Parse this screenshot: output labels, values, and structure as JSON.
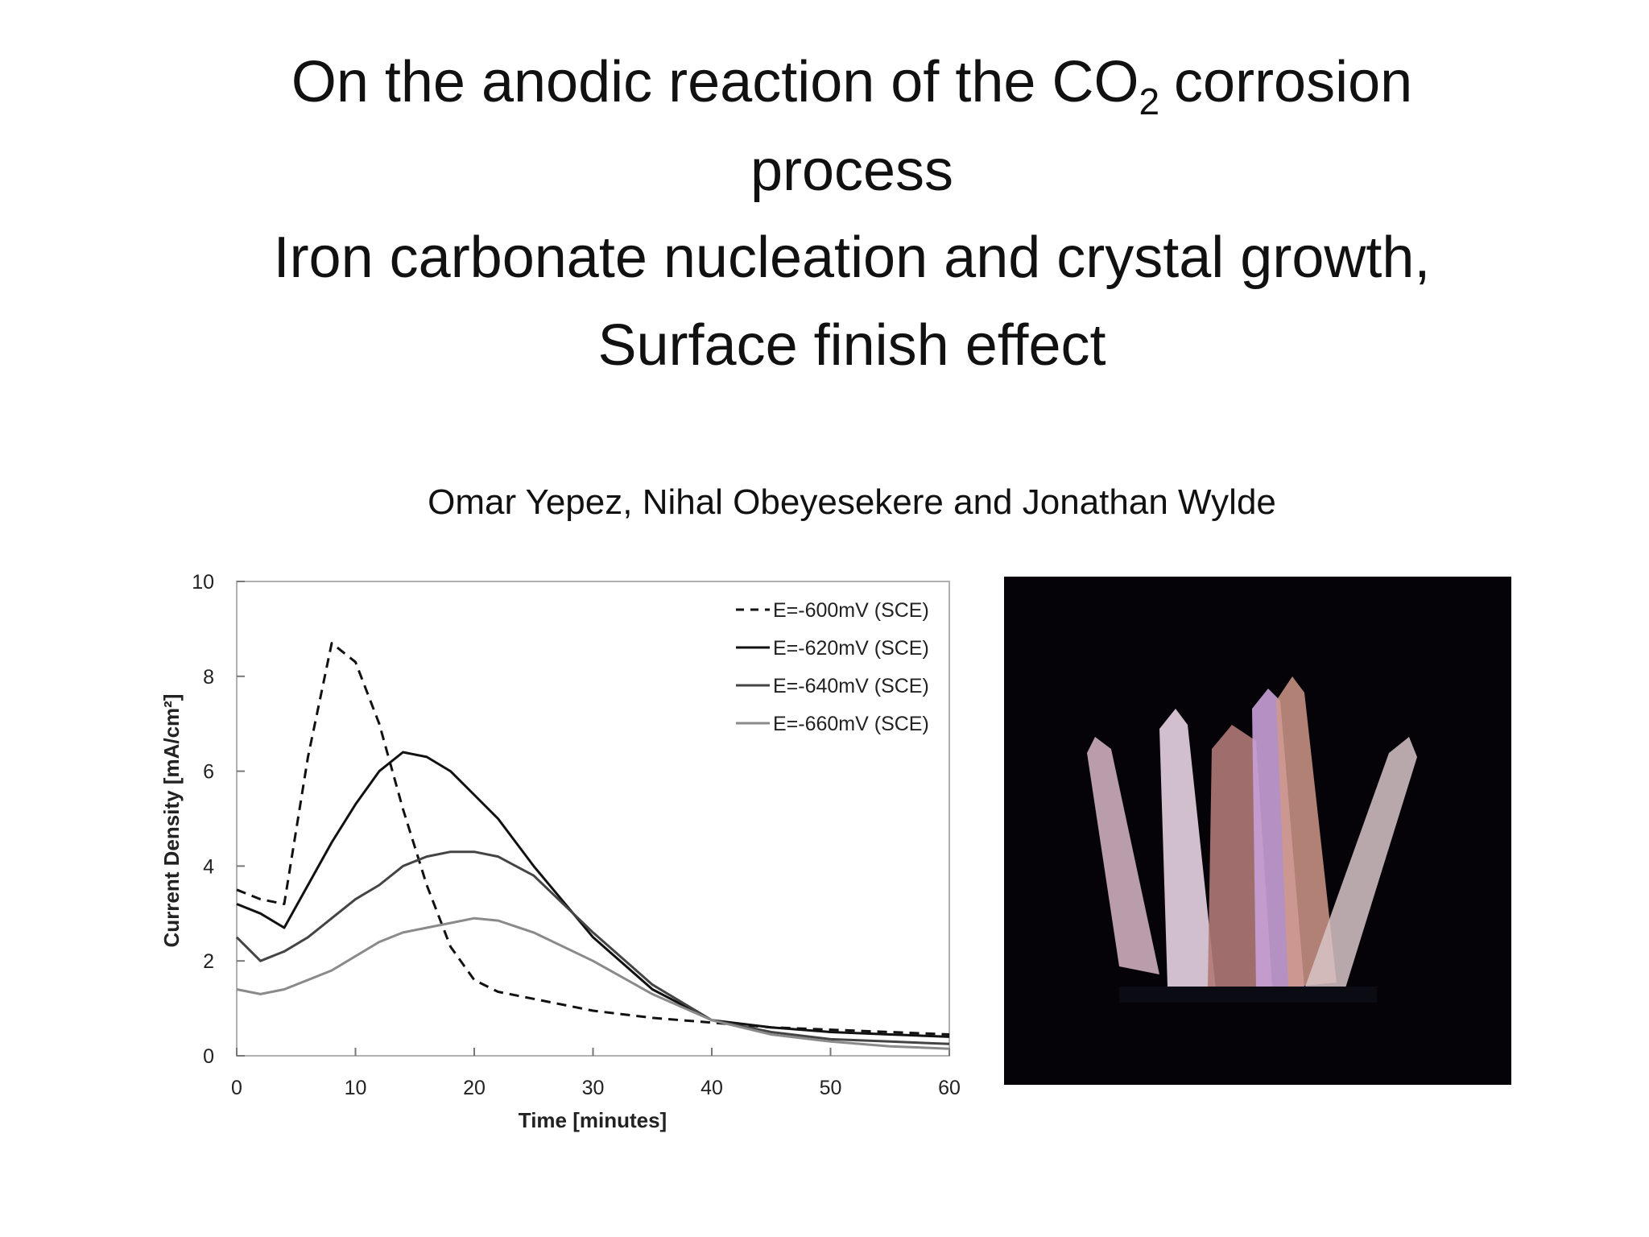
{
  "title": {
    "line1": {
      "text": "On the anodic reaction of the CO",
      "subscript": "2",
      "after": "corrosion"
    },
    "line2": "process"
  },
  "subtitle": [
    "Iron carbonate nucleation and crystal growth,",
    "Surface finish effect"
  ],
  "authors": "Omar Yepez, Nihal Obeyesekere and Jonathan Wylde",
  "chart_data": {
    "type": "line",
    "x_label": "Time [minutes]",
    "y_label": "Current Density [mA/cm²]",
    "x": [
      0,
      2,
      4,
      6,
      8,
      10,
      12,
      14,
      16,
      18,
      20,
      22,
      25,
      30,
      35,
      40,
      45,
      50,
      55,
      60
    ],
    "series": [
      {
        "name": "E=-600mV (SCE)",
        "color": "#111111",
        "style": "dashed",
        "values": [
          3.5,
          3.3,
          3.2,
          6.3,
          8.7,
          8.3,
          7.0,
          5.2,
          3.6,
          2.3,
          1.6,
          1.35,
          1.2,
          0.95,
          0.8,
          0.7,
          0.6,
          0.55,
          0.5,
          0.45
        ]
      },
      {
        "name": "E=-620mV (SCE)",
        "color": "#111111",
        "style": "solid",
        "values": [
          3.2,
          3.0,
          2.7,
          3.6,
          4.5,
          5.3,
          6.0,
          6.4,
          6.3,
          6.0,
          5.5,
          5.0,
          4.0,
          2.5,
          1.4,
          0.75,
          0.6,
          0.5,
          0.45,
          0.4
        ]
      },
      {
        "name": "E=-640mV (SCE)",
        "color": "#444444",
        "style": "solid",
        "values": [
          2.5,
          2.0,
          2.2,
          2.5,
          2.9,
          3.3,
          3.6,
          4.0,
          4.2,
          4.3,
          4.3,
          4.2,
          3.8,
          2.6,
          1.5,
          0.75,
          0.5,
          0.35,
          0.3,
          0.25
        ]
      },
      {
        "name": "E=-660mV (SCE)",
        "color": "#8a8a8a",
        "style": "solid",
        "values": [
          1.4,
          1.3,
          1.4,
          1.6,
          1.8,
          2.1,
          2.4,
          2.6,
          2.7,
          2.8,
          2.9,
          2.85,
          2.6,
          2.0,
          1.3,
          0.75,
          0.45,
          0.3,
          0.2,
          0.15
        ]
      }
    ],
    "xlim": [
      0,
      60
    ],
    "xticks": [
      0,
      10,
      20,
      30,
      40,
      50,
      60
    ],
    "ylim": [
      0,
      10
    ],
    "yticks": [
      0,
      2,
      4,
      6,
      8,
      10
    ],
    "legend": "upper right"
  }
}
